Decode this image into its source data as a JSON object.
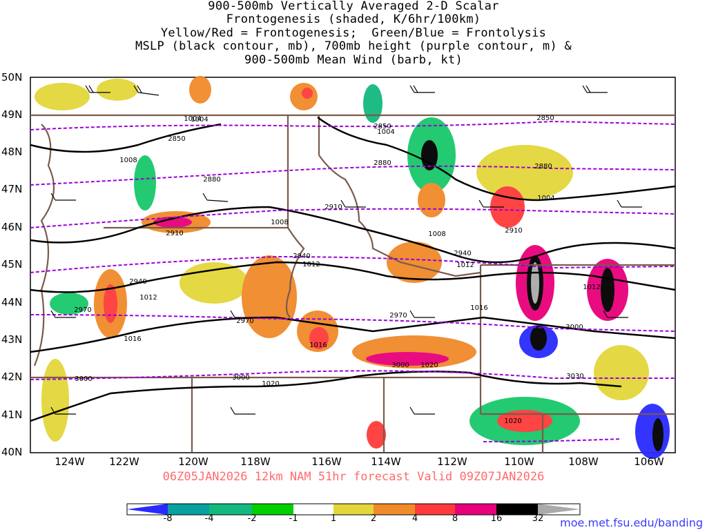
{
  "title_lines": [
    "900-500mb Vertically Averaged 2-D Scalar",
    "Frontogenesis (shaded, K/6hr/100km)",
    "Yellow/Red = Frontogenesis;  Green/Blue = Frontolysis",
    "MSLP (black contour, mb), 700mb height (purple contour, m) &",
    "900-500mb Mean Wind (barb, kt)"
  ],
  "lat_labels": [
    "50N",
    "49N",
    "48N",
    "47N",
    "46N",
    "45N",
    "44N",
    "43N",
    "42N",
    "41N",
    "40N"
  ],
  "lon_labels": [
    "124W",
    "122W",
    "120W",
    "118W",
    "116W",
    "114W",
    "112W",
    "110W",
    "108W",
    "106W"
  ],
  "valid_line": "06Z05JAN2026 12km NAM 51hr forecast Valid 09Z07JAN2026",
  "colorbar": {
    "labels": [
      "-8",
      "-4",
      "-2",
      "-1",
      "1",
      "2",
      "4",
      "8",
      "16",
      "32"
    ],
    "colors": [
      "#2a2aff",
      "#0aa0a0",
      "#13b97e",
      "#18c86a",
      "#00d000",
      "#ffffff",
      "#e3d63a",
      "#f08a2a",
      "#ff3a3a",
      "#e8007a",
      "#000000",
      "#aaaaaa"
    ]
  },
  "mslp_labels": [
    "1004",
    "1008",
    "1008",
    "1004",
    "1004",
    "1012",
    "1012",
    "1016",
    "1012",
    "1016",
    "1016",
    "1008",
    "1012",
    "1020",
    "1020",
    "1020",
    "1004"
  ],
  "height_labels": [
    "2850",
    "2850",
    "2850",
    "2880",
    "2880",
    "2880",
    "2910",
    "2910",
    "2910",
    "2940",
    "2940",
    "2940",
    "2970",
    "2970",
    "2970",
    "3000",
    "3000",
    "3000",
    "3000",
    "3030"
  ],
  "credit": "moe.met.fsu.edu/banding"
}
